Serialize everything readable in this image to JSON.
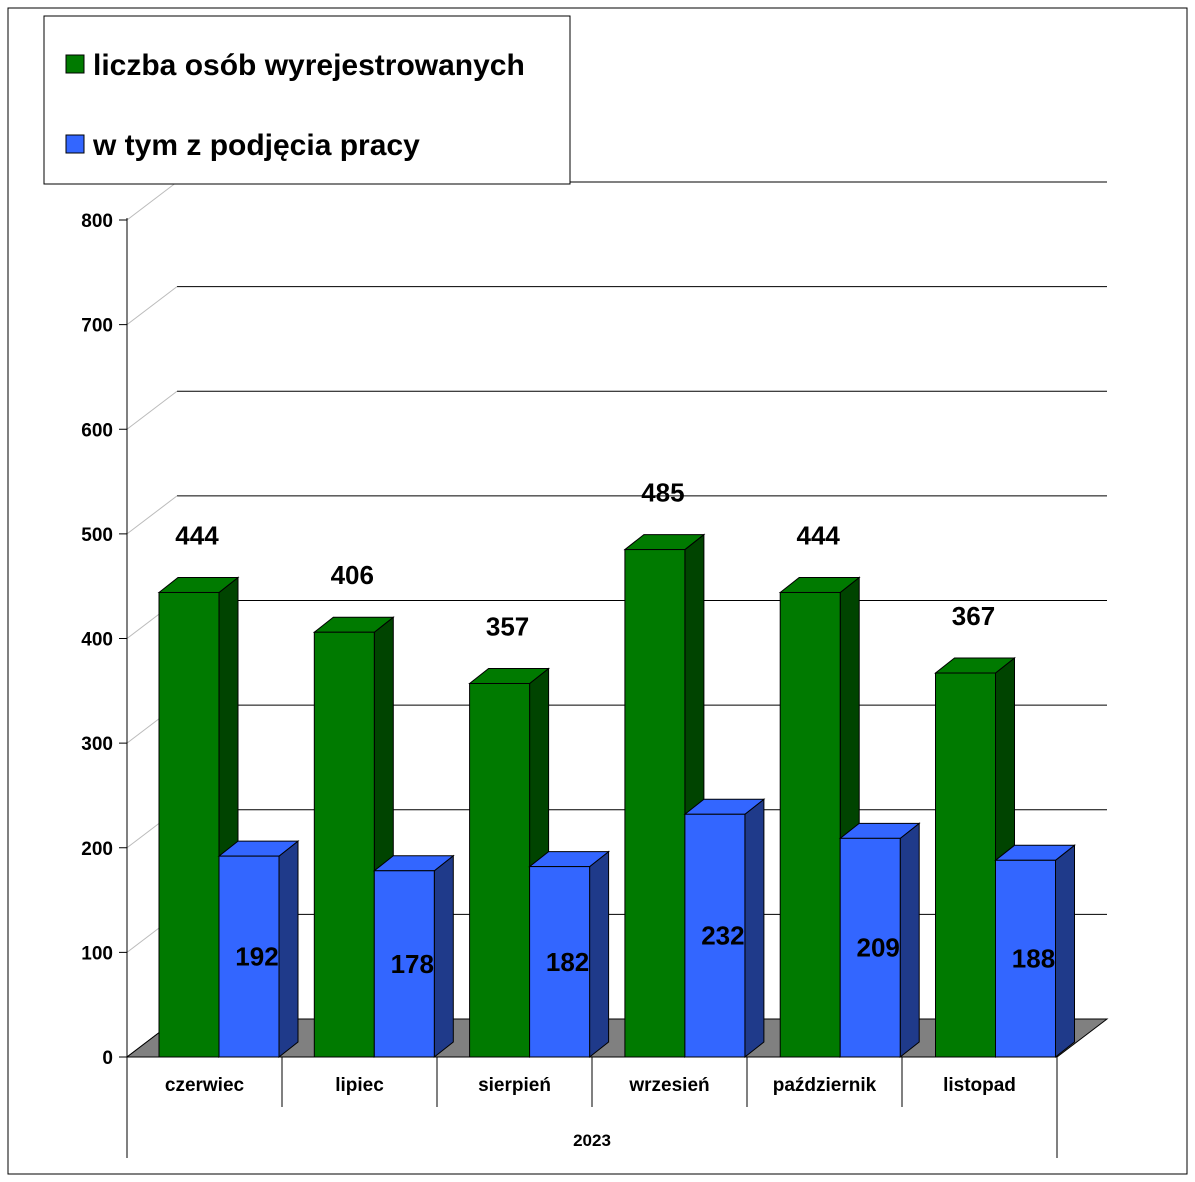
{
  "chart_data": {
    "type": "bar",
    "style": "3d-clustered-column",
    "group_label": "2023",
    "categories": [
      "czerwiec",
      "lipiec",
      "sierpień",
      "wrzesień",
      "październik",
      "listopad"
    ],
    "series": [
      {
        "name": "liczba osób wyrejestrowanych",
        "values": [
          444,
          406,
          357,
          485,
          444,
          367
        ],
        "color": "#007A00",
        "side_color": "#004400",
        "label_position": "above"
      },
      {
        "name": "w tym z podjęcia pracy",
        "values": [
          192,
          178,
          182,
          232,
          209,
          188
        ],
        "color": "#3366FF",
        "side_color": "#1F3A8A",
        "label_position": "inside"
      }
    ],
    "ylim": [
      0,
      800
    ],
    "yticks": [
      0,
      100,
      200,
      300,
      400,
      500,
      600,
      700,
      800
    ],
    "grid": true,
    "legend_position": "top-left",
    "floor_color": "#808080"
  }
}
